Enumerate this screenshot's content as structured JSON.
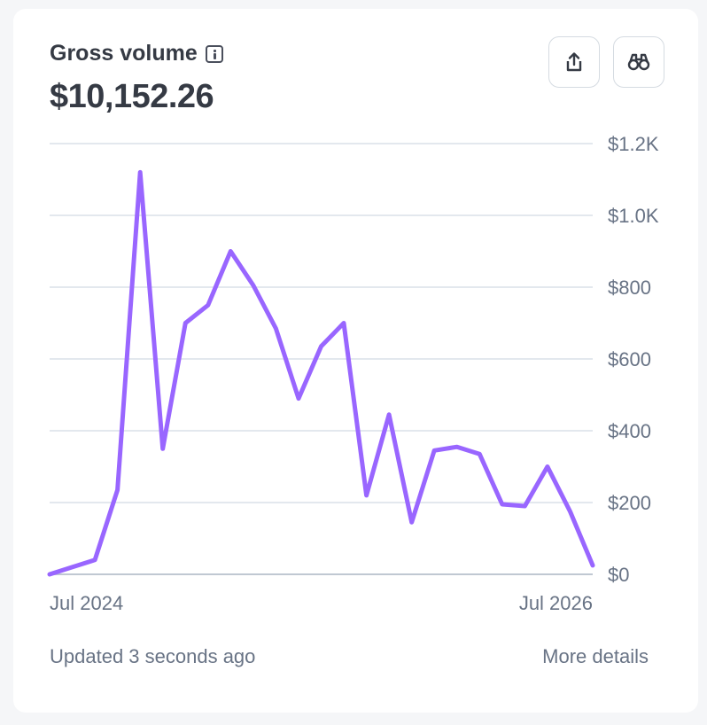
{
  "card": {
    "title": "Gross volume",
    "amount": "$10,152.26",
    "updated": "Updated 3 seconds ago",
    "more_details": "More details"
  },
  "icons": {
    "info": "info-icon",
    "export": "share-export-icon",
    "explore": "binoculars-icon"
  },
  "colors": {
    "line": "#9966ff",
    "grid": "#e3e8ee",
    "text": "#353a44",
    "muted": "#687385"
  },
  "chart_data": {
    "type": "line",
    "title": "",
    "xlabel": "",
    "ylabel": "",
    "ylim": [
      0,
      1200
    ],
    "yticks": [
      0,
      200,
      400,
      600,
      800,
      1000,
      1200
    ],
    "ytick_labels": [
      "$0",
      "$200",
      "$400",
      "$600",
      "$800",
      "$1.0K",
      "$1.2K"
    ],
    "xtick_labels": [
      "Jul 2024",
      "Jul 2026"
    ],
    "grid": true,
    "series": [
      {
        "values": [
          0,
          20,
          40,
          235,
          1120,
          350,
          700,
          750,
          900,
          805,
          685,
          490,
          635,
          700,
          220,
          445,
          145,
          345,
          355,
          335,
          195,
          190,
          300,
          175,
          25
        ]
      }
    ]
  }
}
